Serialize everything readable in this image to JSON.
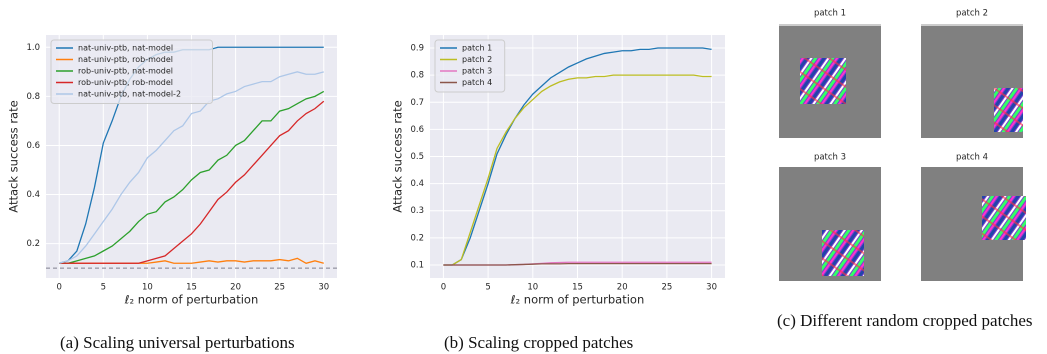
{
  "chart_data": [
    {
      "type": "line",
      "ylabel": "Attack success rate",
      "xlabel": "ℓ₂ norm of perturbation",
      "caption": "(a) Scaling universal perturbations",
      "x": [
        0,
        1,
        2,
        3,
        4,
        5,
        6,
        7,
        8,
        9,
        10,
        11,
        12,
        13,
        14,
        15,
        16,
        17,
        18,
        19,
        20,
        21,
        22,
        23,
        24,
        25,
        26,
        27,
        28,
        29,
        30
      ],
      "xlim": [
        -1.5,
        31.5
      ],
      "xticks": [
        0,
        5,
        10,
        15,
        20,
        25,
        30
      ],
      "ylim": [
        0.06,
        1.05
      ],
      "yticks": [
        0.2,
        0.4,
        0.6,
        0.8,
        {
          "value": 1,
          "label": "1.0"
        }
      ],
      "grid": true,
      "legend": "upper left",
      "reference_line": 0.1,
      "series": [
        {
          "name": "nat-univ-ptb, nat-model",
          "color": "#1f77b4",
          "values": [
            0.12,
            0.13,
            0.17,
            0.28,
            0.43,
            0.61,
            0.7,
            0.8,
            0.87,
            0.92,
            0.95,
            0.97,
            0.98,
            0.98,
            0.99,
            0.99,
            0.99,
            0.99,
            1.0,
            1.0,
            1.0,
            1.0,
            1.0,
            1.0,
            1.0,
            1.0,
            1.0,
            1.0,
            1.0,
            1.0,
            1.0
          ]
        },
        {
          "name": "nat-univ-ptb, rob-model",
          "color": "#ff7f0e",
          "values": [
            0.12,
            0.12,
            0.12,
            0.12,
            0.12,
            0.12,
            0.12,
            0.12,
            0.12,
            0.12,
            0.12,
            0.125,
            0.13,
            0.12,
            0.12,
            0.12,
            0.125,
            0.13,
            0.125,
            0.13,
            0.13,
            0.125,
            0.13,
            0.13,
            0.13,
            0.135,
            0.13,
            0.14,
            0.12,
            0.13,
            0.12
          ]
        },
        {
          "name": "rob-univ-ptb, nat-model",
          "color": "#2ca02c",
          "values": [
            0.12,
            0.12,
            0.13,
            0.14,
            0.15,
            0.17,
            0.19,
            0.22,
            0.25,
            0.29,
            0.32,
            0.33,
            0.37,
            0.39,
            0.42,
            0.46,
            0.49,
            0.5,
            0.54,
            0.56,
            0.6,
            0.62,
            0.66,
            0.7,
            0.7,
            0.74,
            0.75,
            0.77,
            0.79,
            0.8,
            0.82
          ]
        },
        {
          "name": "rob-univ-ptb, rob-model",
          "color": "#d62728",
          "values": [
            0.12,
            0.12,
            0.12,
            0.12,
            0.12,
            0.12,
            0.12,
            0.12,
            0.12,
            0.12,
            0.13,
            0.14,
            0.15,
            0.18,
            0.21,
            0.24,
            0.28,
            0.33,
            0.38,
            0.41,
            0.45,
            0.48,
            0.52,
            0.56,
            0.6,
            0.64,
            0.66,
            0.7,
            0.73,
            0.75,
            0.78
          ]
        },
        {
          "name": "nat-univ-ptb, nat-model-2",
          "color": "#aec7e8",
          "values": [
            0.12,
            0.13,
            0.15,
            0.19,
            0.24,
            0.29,
            0.34,
            0.4,
            0.45,
            0.49,
            0.55,
            0.58,
            0.62,
            0.66,
            0.68,
            0.73,
            0.74,
            0.78,
            0.79,
            0.81,
            0.82,
            0.84,
            0.85,
            0.86,
            0.86,
            0.88,
            0.89,
            0.9,
            0.89,
            0.89,
            0.9
          ]
        }
      ]
    },
    {
      "type": "line",
      "ylabel": "Attack success rate",
      "xlabel": "ℓ₂ norm of perturbation",
      "caption": "(b) Scaling cropped patches",
      "x": [
        0,
        1,
        2,
        3,
        4,
        5,
        6,
        7,
        8,
        9,
        10,
        11,
        12,
        13,
        14,
        15,
        16,
        17,
        18,
        19,
        20,
        21,
        22,
        23,
        24,
        25,
        26,
        27,
        28,
        29,
        30
      ],
      "xlim": [
        -1.5,
        31.5
      ],
      "xticks": [
        0,
        5,
        10,
        15,
        20,
        25,
        30
      ],
      "ylim": [
        0.052,
        0.948
      ],
      "yticks": [
        0.1,
        0.2,
        0.3,
        0.4,
        0.5,
        0.6,
        0.7,
        0.8,
        0.9
      ],
      "grid": true,
      "legend": "upper left",
      "series": [
        {
          "name": "patch 1",
          "color": "#1f77b4",
          "values": [
            0.1,
            0.1,
            0.12,
            0.2,
            0.3,
            0.4,
            0.51,
            0.58,
            0.64,
            0.69,
            0.73,
            0.76,
            0.79,
            0.81,
            0.83,
            0.845,
            0.86,
            0.87,
            0.88,
            0.885,
            0.89,
            0.89,
            0.895,
            0.895,
            0.9,
            0.9,
            0.9,
            0.9,
            0.9,
            0.9,
            0.895
          ]
        },
        {
          "name": "patch 2",
          "color": "#bcbd22",
          "values": [
            0.1,
            0.1,
            0.12,
            0.22,
            0.32,
            0.42,
            0.53,
            0.59,
            0.64,
            0.68,
            0.71,
            0.74,
            0.76,
            0.775,
            0.785,
            0.79,
            0.79,
            0.795,
            0.795,
            0.8,
            0.8,
            0.8,
            0.8,
            0.8,
            0.8,
            0.8,
            0.8,
            0.8,
            0.8,
            0.795,
            0.795
          ]
        },
        {
          "name": "patch 3",
          "color": "#e377c2",
          "values": [
            0.1,
            0.1,
            0.1,
            0.1,
            0.1,
            0.1,
            0.1,
            0.1,
            0.101,
            0.102,
            0.104,
            0.106,
            0.108,
            0.109,
            0.11,
            0.11,
            0.11,
            0.11,
            0.11,
            0.11,
            0.11,
            0.11,
            0.11,
            0.11,
            0.11,
            0.11,
            0.11,
            0.11,
            0.11,
            0.11,
            0.11
          ]
        },
        {
          "name": "patch 4",
          "color": "#8c564b",
          "values": [
            0.1,
            0.1,
            0.1,
            0.1,
            0.1,
            0.1,
            0.1,
            0.1,
            0.101,
            0.102,
            0.103,
            0.104,
            0.104,
            0.104,
            0.105,
            0.105,
            0.105,
            0.105,
            0.105,
            0.105,
            0.105,
            0.105,
            0.105,
            0.105,
            0.105,
            0.105,
            0.105,
            0.105,
            0.105,
            0.105,
            0.105
          ]
        }
      ]
    }
  ],
  "patch_panel": {
    "titles": [
      "patch 1",
      "patch 2",
      "patch 3",
      "patch 4"
    ],
    "caption": "(c) Different random cropped patches"
  }
}
